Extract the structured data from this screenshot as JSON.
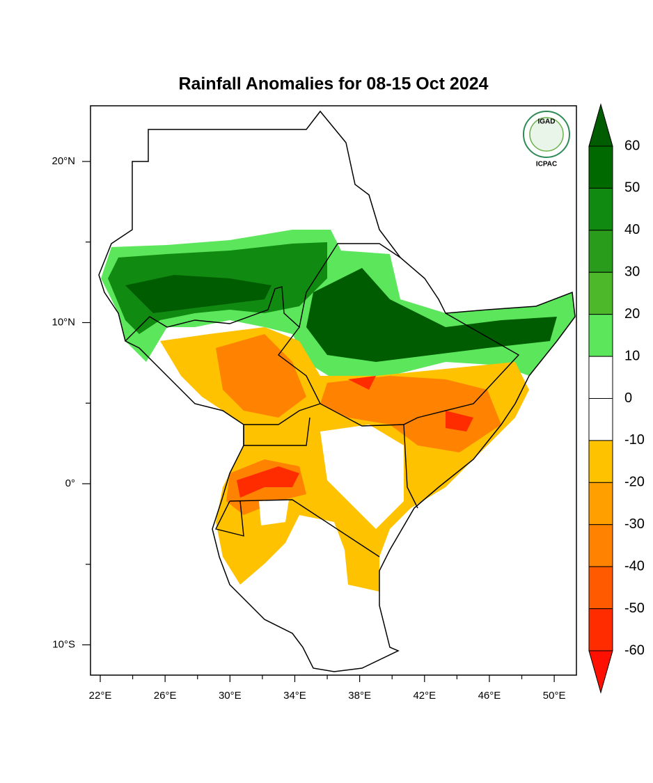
{
  "map": {
    "title": "Rainfall Anomalies for 08-15 Oct 2024",
    "lon_ticks": [
      {
        "value": 22,
        "label": "22°E"
      },
      {
        "value": 26,
        "label": "26°E"
      },
      {
        "value": 30,
        "label": "30°E"
      },
      {
        "value": 34,
        "label": "34°E"
      },
      {
        "value": 38,
        "label": "38°E"
      },
      {
        "value": 42,
        "label": "42°E"
      },
      {
        "value": 46,
        "label": "46°E"
      },
      {
        "value": 50,
        "label": "50°E"
      }
    ],
    "lon_minor_ticks": [
      24,
      28,
      32,
      36,
      40,
      44,
      48
    ],
    "lat_ticks": [
      {
        "value": 20,
        "label": "20°N"
      },
      {
        "value": 10,
        "label": "10°N"
      },
      {
        "value": 0,
        "label": "0°"
      },
      {
        "value": -10,
        "label": "10°S"
      }
    ],
    "lat_minor_ticks": [
      15,
      5,
      -5
    ],
    "colorbar": {
      "levels": [
        60,
        50,
        40,
        30,
        20,
        10,
        0,
        -10,
        -20,
        -30,
        -40,
        -50,
        -60
      ],
      "colors": [
        "#005c00",
        "#006a00",
        "#108a10",
        "#2a9c1c",
        "#4cb82a",
        "#5ce65c",
        "#ffffff",
        "#ffffff",
        "#ffc200",
        "#ffa000",
        "#ff8200",
        "#ff5a00",
        "#ff2c00",
        "#ff1000"
      ]
    },
    "logo": {
      "top": "IGAD",
      "bottom": "ICPAC"
    }
  }
}
